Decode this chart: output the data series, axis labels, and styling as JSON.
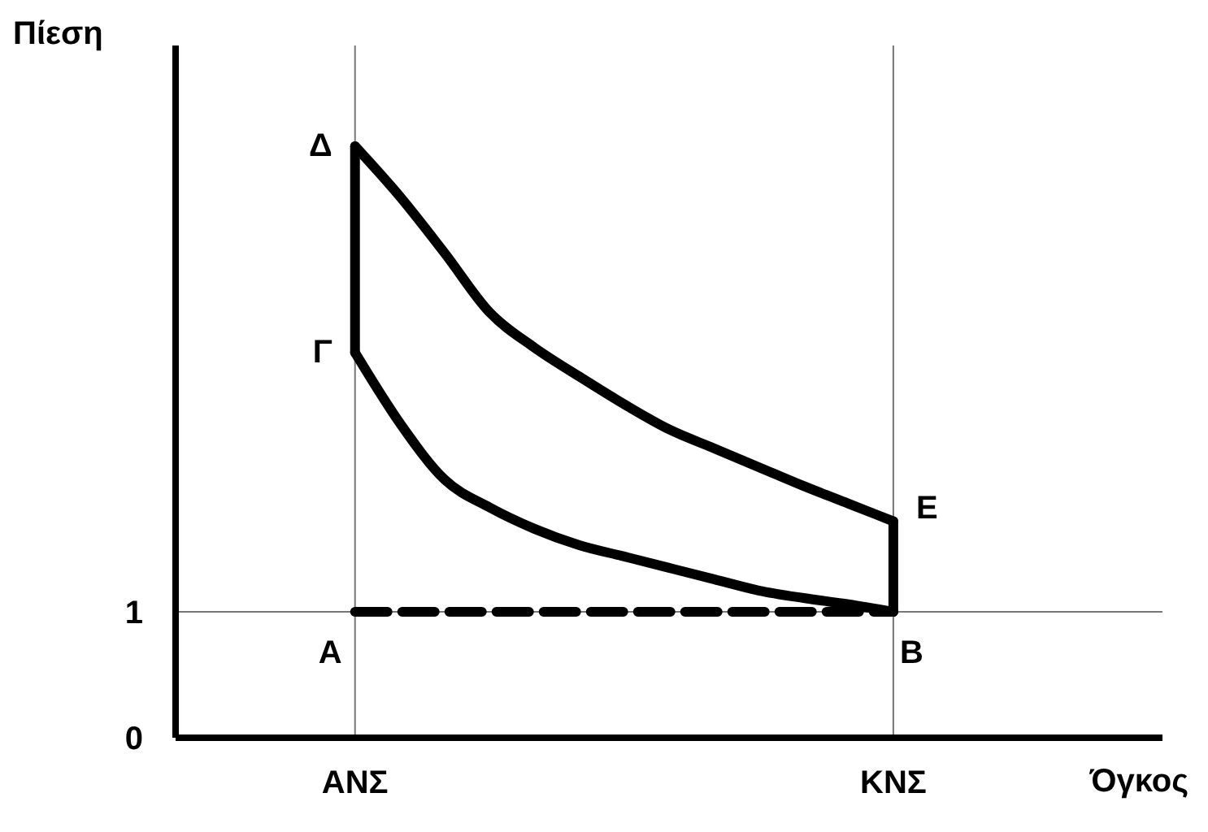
{
  "chart_data": {
    "type": "line",
    "xlabel": "Όγκος",
    "ylabel": "Πίεση",
    "categories": [
      null,
      null,
      null,
      null,
      "ΑΝΣ",
      null,
      null,
      null,
      null,
      null,
      null,
      null,
      null,
      null,
      null,
      null,
      "ΚΝΣ",
      null,
      null,
      null,
      null,
      null,
      null
    ],
    "ylim": [
      0,
      5.5
    ],
    "yticks": [
      0,
      1
    ],
    "grid": true,
    "marker": "none",
    "series": [
      {
        "color": "#000000",
        "line_style": "solid",
        "values": [
          null,
          null,
          null,
          null,
          3.06,
          2.5,
          2.05,
          1.83,
          1.66,
          1.53,
          1.44,
          1.35,
          1.26,
          1.17,
          1.11,
          1.06,
          1,
          null,
          null,
          null,
          null,
          null,
          null
        ]
      },
      {
        "color": "#000000",
        "line_style": "solid",
        "values": [
          null,
          null,
          null,
          null,
          4.7,
          4.3,
          3.85,
          3.38,
          3.1,
          2.87,
          2.65,
          2.45,
          2.3,
          2.15,
          2,
          1.86,
          1.72,
          null,
          null,
          null,
          null,
          null,
          null
        ]
      },
      {
        "color": "#000000",
        "line_style": "solid",
        "x": [
          "ΑΝΣ",
          "ΑΝΣ"
        ],
        "values": [
          3.06,
          4.7
        ]
      },
      {
        "color": "#000000",
        "line_style": "solid",
        "x": [
          "ΚΝΣ",
          "ΚΝΣ"
        ],
        "values": [
          1.72,
          1
        ]
      },
      {
        "color": "#000000",
        "line_style": "dashed",
        "values": [
          null,
          null,
          null,
          null,
          1,
          1,
          1,
          1,
          1,
          1,
          1,
          1,
          1,
          1,
          1,
          1,
          1,
          null,
          null,
          null,
          null,
          null,
          null
        ]
      }
    ],
    "annotations": [
      {
        "text": "Δ",
        "x": "ΑΝΣ",
        "y": 4.7
      },
      {
        "text": "Γ",
        "x": "ΑΝΣ",
        "y": 3.06
      },
      {
        "text": "Ε",
        "x": "ΚΝΣ",
        "y": 1.72
      },
      {
        "text": "Α",
        "x": "ΑΝΣ",
        "y": 1
      },
      {
        "text": "Β",
        "x": "ΚΝΣ",
        "y": 1
      }
    ]
  }
}
